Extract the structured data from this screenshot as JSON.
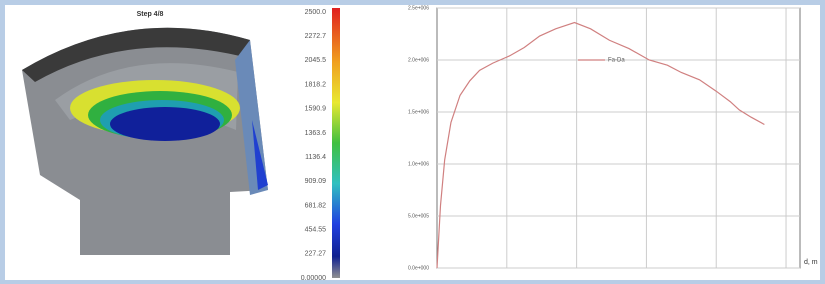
{
  "render": {
    "title": "Step 4/8",
    "colorbar_labels": [
      "2500.0",
      "2272.7",
      "2045.5",
      "1818.2",
      "1590.9",
      "1363.6",
      "1136.4",
      "909.09",
      "681.82",
      "454.55",
      "227.27",
      "0.00000"
    ]
  },
  "chart_data": {
    "type": "line",
    "x_label": "d, m",
    "x": [
      0,
      0.05,
      0.11,
      0.2,
      0.33,
      0.47,
      0.61,
      0.8,
      1.04,
      1.25,
      1.47,
      1.7,
      1.97,
      2.2,
      2.47,
      2.75,
      3.04,
      3.3,
      3.5,
      3.76,
      4.0,
      4.2,
      4.33,
      4.5,
      4.69
    ],
    "series": [
      {
        "name": "Fa-Da",
        "color": "#d08080",
        "values": [
          0,
          600000,
          1040000,
          1400000,
          1660000,
          1800000,
          1900000,
          1970000,
          2040000,
          2120000,
          2230000,
          2300000,
          2360000,
          2300000,
          2190000,
          2110000,
          2000000,
          1950000,
          1880000,
          1810000,
          1700000,
          1600000,
          1520000,
          1450000,
          1380000
        ]
      }
    ],
    "xlim": [
      0,
      5.2
    ],
    "xticks": [
      1,
      2,
      3,
      4,
      5
    ],
    "ylim": [
      0,
      2500000
    ],
    "yticks": [
      {
        "value": 0,
        "label": "0.0e+000"
      },
      {
        "value": 500000,
        "label": "5.0e+005"
      },
      {
        "value": 1000000,
        "label": "1.0e+006"
      },
      {
        "value": 1500000,
        "label": "1.5e+006"
      },
      {
        "value": 2000000,
        "label": "2.0e+006"
      },
      {
        "value": 2500000,
        "label": "2.5e+006"
      }
    ],
    "grid": true
  }
}
